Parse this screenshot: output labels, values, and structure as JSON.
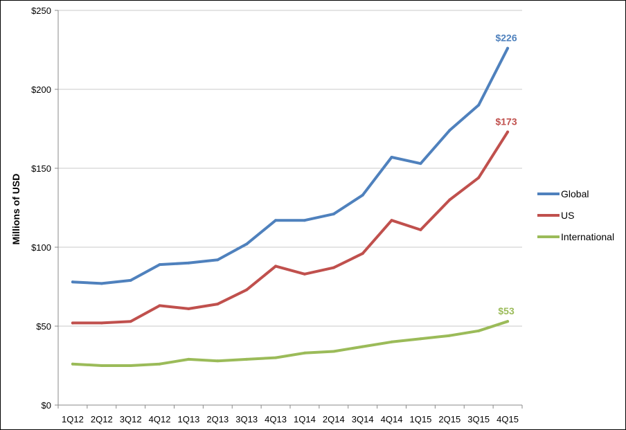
{
  "chart_data": {
    "type": "line",
    "ylabel": "Millions of USD",
    "xlabel": "",
    "categories": [
      "1Q12",
      "2Q12",
      "3Q12",
      "4Q12",
      "1Q13",
      "2Q13",
      "3Q13",
      "4Q13",
      "1Q14",
      "2Q14",
      "3Q14",
      "4Q14",
      "1Q15",
      "2Q15",
      "3Q15",
      "4Q15"
    ],
    "ylim": [
      0,
      250
    ],
    "yticks": [
      0,
      50,
      100,
      150,
      200,
      250
    ],
    "ytick_labels": [
      "$0",
      "$50",
      "$100",
      "$150",
      "$200",
      "$250"
    ],
    "grid": true,
    "legend_position": "right",
    "series": [
      {
        "name": "Global",
        "color": "#4f81bd",
        "values": [
          78,
          77,
          79,
          89,
          90,
          92,
          102,
          117,
          117,
          121,
          133,
          157,
          153,
          174,
          190,
          226
        ],
        "end_label": "$226"
      },
      {
        "name": "US",
        "color": "#c0504d",
        "values": [
          52,
          52,
          53,
          63,
          61,
          64,
          73,
          88,
          83,
          87,
          96,
          117,
          111,
          130,
          144,
          173
        ],
        "end_label": "$173"
      },
      {
        "name": "International",
        "color": "#9bbb59",
        "values": [
          26,
          25,
          25,
          26,
          29,
          28,
          29,
          30,
          33,
          34,
          37,
          40,
          42,
          44,
          47,
          53
        ],
        "end_label": "$53"
      }
    ]
  }
}
